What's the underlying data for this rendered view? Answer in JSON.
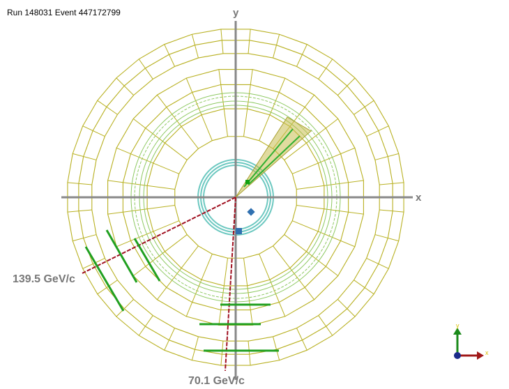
{
  "header": {
    "title": "Run 148031 Event 447172799"
  },
  "axes": {
    "x": "x",
    "y": "y"
  },
  "tracks": [
    {
      "label": "139.5 GeV/c"
    },
    {
      "label": "70.1 GeV/c"
    }
  ],
  "orientation": {
    "x": "x",
    "y": "y"
  }
}
